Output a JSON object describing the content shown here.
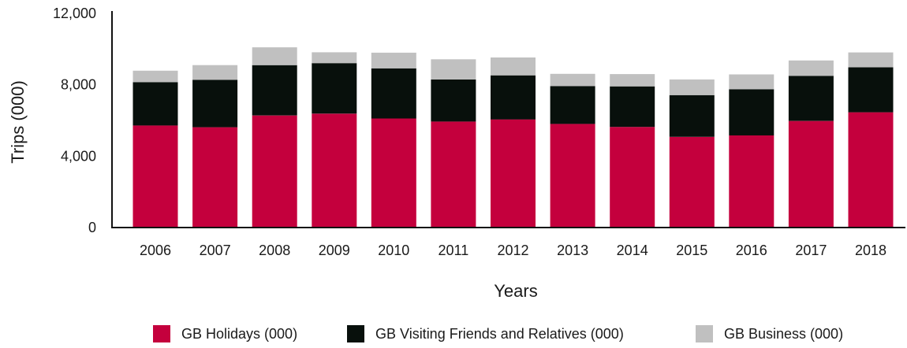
{
  "chart_data": {
    "type": "bar",
    "stacked": true,
    "categories": [
      "2006",
      "2007",
      "2008",
      "2009",
      "2010",
      "2011",
      "2012",
      "2013",
      "2014",
      "2015",
      "2016",
      "2017",
      "2018"
    ],
    "series": [
      {
        "name": "GB Holidays (000)",
        "color": "#c4003d",
        "values": [
          5720,
          5620,
          6280,
          6380,
          6110,
          5940,
          6060,
          5810,
          5640,
          5080,
          5160,
          5970,
          6460
        ]
      },
      {
        "name": "GB Visiting Friends and Relatives (000)",
        "color": "#08100c",
        "values": [
          2430,
          2660,
          2820,
          2830,
          2810,
          2360,
          2470,
          2120,
          2270,
          2340,
          2590,
          2530,
          2520
        ]
      },
      {
        "name": "GB Business (000)",
        "color": "#c0c0c0",
        "values": [
          640,
          820,
          1000,
          610,
          880,
          1130,
          1000,
          680,
          690,
          880,
          830,
          860,
          830
        ]
      }
    ],
    "xlabel": "Years",
    "ylabel": "Trips (000)",
    "ylim": [
      0,
      12000
    ],
    "yticks": [
      0,
      4000,
      8000,
      12000
    ],
    "ytick_labels": [
      "0",
      "4,000",
      "8,000",
      "12,000"
    ],
    "grid": false,
    "legend_position": "bottom"
  }
}
